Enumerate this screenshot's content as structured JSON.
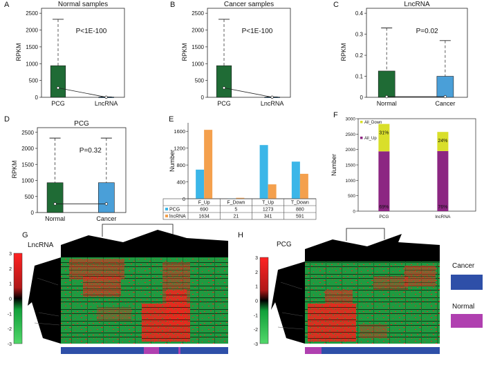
{
  "colors": {
    "pcg_green": "#1f6b35",
    "lnc_blue": "#4a9fd8",
    "bar_cyan": "#3bb6e8",
    "bar_orange": "#f4a04d",
    "all_down": "#d9df2a",
    "all_up": "#8c2682",
    "heat_red": "#e8281e",
    "heat_green": "#22b04b",
    "cancer_blue": "#2e4fa8",
    "normal_magenta": "#b040b0"
  },
  "chart_data": [
    {
      "id": "A",
      "type": "box",
      "letter": "A",
      "title": "Normal samples",
      "ylabel": "RPKM",
      "categories": [
        "PCG",
        "LncRNA"
      ],
      "ylim": [
        0,
        2500
      ],
      "yticks": [
        0,
        500,
        1000,
        1500,
        2000,
        2500
      ],
      "series": [
        {
          "box_upper": 940,
          "mean": 280,
          "whisker_upper": 2320
        },
        {
          "box_upper": 8,
          "mean": 4,
          "whisker_upper": 12
        }
      ],
      "annotation": "P<1E-100"
    },
    {
      "id": "B",
      "type": "box",
      "letter": "B",
      "title": "Cancer samples",
      "ylabel": "RPKM",
      "categories": [
        "PCG",
        "LncRNA"
      ],
      "ylim": [
        0,
        2500
      ],
      "yticks": [
        0,
        500,
        1000,
        1500,
        2000,
        2500
      ],
      "series": [
        {
          "box_upper": 940,
          "mean": 280,
          "whisker_upper": 2320
        },
        {
          "box_upper": 8,
          "mean": 4,
          "whisker_upper": 12
        }
      ],
      "annotation": "P<1E-100"
    },
    {
      "id": "C",
      "type": "box",
      "letter": "C",
      "title": "LncRNA",
      "ylabel": "RPKM",
      "categories": [
        "Normal",
        "Cancer"
      ],
      "ylim": [
        0,
        0.4
      ],
      "yticks": [
        0,
        0.1,
        0.2,
        0.3,
        0.4
      ],
      "series": [
        {
          "box_upper": 0.125,
          "mean": 0.003,
          "whisker_upper": 0.33
        },
        {
          "box_upper": 0.1,
          "mean": 0.003,
          "whisker_upper": 0.27
        }
      ],
      "annotation": "P=0.02"
    },
    {
      "id": "D",
      "type": "box",
      "letter": "D",
      "title": "PCG",
      "ylabel": "RPKM",
      "categories": [
        "Normal",
        "Cancer"
      ],
      "ylim": [
        0,
        2500
      ],
      "yticks": [
        0,
        500,
        1000,
        1500,
        2000,
        2500
      ],
      "series": [
        {
          "box_upper": 930,
          "mean": 270,
          "whisker_upper": 2320
        },
        {
          "box_upper": 930,
          "mean": 270,
          "whisker_upper": 2320
        }
      ],
      "annotation": "P=0.32"
    },
    {
      "id": "E",
      "type": "bar",
      "letter": "E",
      "ylabel": "Number",
      "ylim": [
        0,
        1800
      ],
      "yticks": [
        0,
        400,
        800,
        1200,
        1600
      ],
      "categories": [
        "F_Up",
        "F_Down",
        "T_Up",
        "T_Down"
      ],
      "series": [
        {
          "name": "PCG",
          "values": [
            690,
            5,
            1273,
            880
          ]
        },
        {
          "name": "lncRNA",
          "values": [
            1634,
            21,
            341,
            591
          ]
        }
      ],
      "table": [
        {
          "name": "PCG",
          "cells": [
            "690",
            "5",
            "1273",
            "880"
          ]
        },
        {
          "name": "lncRNA",
          "cells": [
            "1634",
            "21",
            "341",
            "591"
          ]
        }
      ]
    },
    {
      "id": "F",
      "type": "stacked_bar",
      "letter": "F",
      "ylabel": "Number",
      "ylim": [
        0,
        3000
      ],
      "yticks": [
        0,
        500,
        1000,
        1500,
        2000,
        2500,
        3000
      ],
      "categories": [
        "PCG",
        "lncRNA"
      ],
      "series": [
        {
          "name": "All_Up",
          "values": [
            1940,
            1950
          ],
          "labels": [
            "69%",
            "76%"
          ]
        },
        {
          "name": "All_Down",
          "values": [
            890,
            620
          ],
          "labels": [
            "31%",
            "24%"
          ]
        }
      ],
      "legend_position": "top-left"
    },
    {
      "id": "G",
      "type": "heatmap",
      "letter": "G",
      "title": "LncRNA",
      "colorbar_ticks": [
        3,
        2,
        1,
        0,
        -1,
        -2,
        -3
      ]
    },
    {
      "id": "H",
      "type": "heatmap",
      "letter": "H",
      "title": "PCG",
      "colorbar_ticks": [
        3,
        2,
        1,
        0,
        -1,
        -2,
        -3
      ]
    }
  ],
  "heatmap_legend": {
    "cancer": "Cancer",
    "normal": "Normal"
  }
}
